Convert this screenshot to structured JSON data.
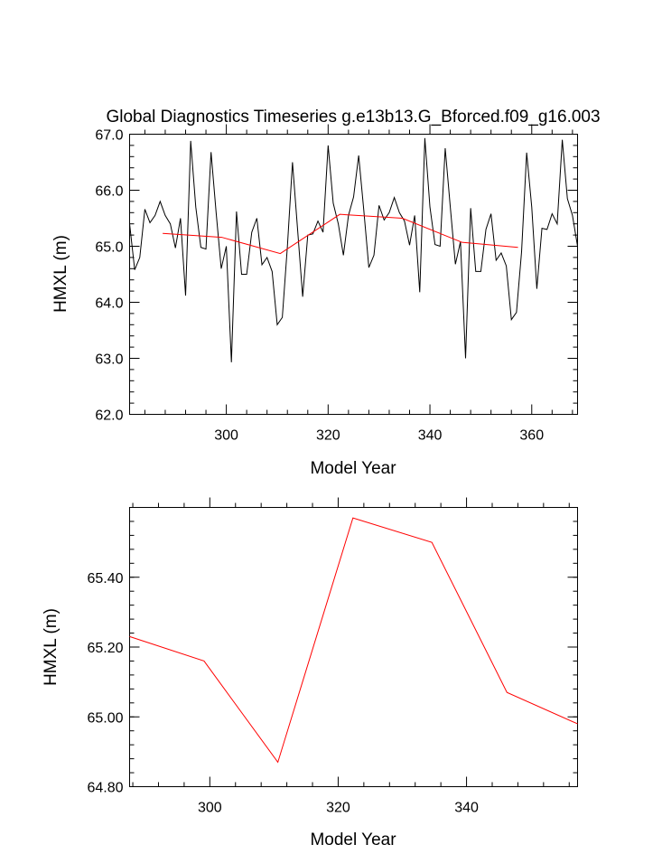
{
  "title": "Global Diagnostics Timeseries g.e13b13.G_Bforced.f09_g16.003",
  "chart_data": [
    {
      "type": "line",
      "xlabel": "Model Year",
      "ylabel": "HMXL (m)",
      "xlim": [
        281,
        369
      ],
      "ylim": [
        62.0,
        67.0
      ],
      "xticks": [
        300,
        320,
        340,
        360
      ],
      "yticks": [
        62.0,
        63.0,
        64.0,
        65.0,
        66.0,
        67.0
      ],
      "ytick_labels": [
        "62.0",
        "63.0",
        "64.0",
        "65.0",
        "66.0",
        "67.0"
      ],
      "grid": false,
      "series": [
        {
          "color": "#000000",
          "x": [
            281,
            282,
            283,
            284,
            285,
            286,
            287,
            288,
            289,
            290,
            291,
            292,
            293,
            294,
            295,
            296,
            297,
            298,
            299,
            300,
            301,
            302,
            303,
            304,
            305,
            306,
            307,
            308,
            309,
            310,
            311,
            312,
            313,
            314,
            315,
            316,
            317,
            318,
            319,
            320,
            321,
            322,
            323,
            324,
            325,
            326,
            327,
            328,
            329,
            330,
            331,
            332,
            333,
            334,
            335,
            336,
            337,
            338,
            339,
            340,
            341,
            342,
            343,
            344,
            345,
            346,
            347,
            348,
            349,
            350,
            351,
            352,
            353,
            354,
            355,
            356,
            357,
            358,
            359,
            360,
            361,
            362,
            363,
            364,
            365,
            366,
            367,
            368,
            369
          ],
          "y": [
            65.4,
            64.58,
            64.8,
            65.66,
            65.42,
            65.55,
            65.8,
            65.55,
            65.4,
            64.97,
            65.5,
            64.12,
            66.88,
            65.7,
            64.98,
            64.95,
            66.68,
            65.6,
            64.6,
            65.0,
            62.93,
            65.62,
            64.5,
            64.5,
            65.25,
            65.5,
            64.67,
            64.8,
            64.55,
            63.6,
            63.73,
            65.0,
            66.5,
            65.3,
            64.1,
            65.2,
            65.22,
            65.45,
            65.25,
            66.8,
            65.77,
            65.4,
            64.84,
            65.55,
            65.88,
            66.62,
            65.65,
            64.62,
            64.84,
            65.73,
            65.47,
            65.6,
            65.87,
            65.6,
            65.45,
            65.02,
            65.55,
            64.18,
            66.93,
            65.7,
            65.03,
            65.0,
            66.75,
            65.7,
            64.68,
            65.08,
            63.0,
            65.68,
            64.55,
            64.55,
            65.3,
            65.58,
            64.75,
            64.88,
            64.65,
            63.69,
            63.82,
            64.9,
            66.67,
            65.7,
            64.24,
            65.32,
            65.3,
            65.58,
            65.4,
            66.9,
            65.85,
            65.55,
            65.0
          ]
        },
        {
          "color": "#ff0000",
          "x": [
            287.5,
            299.1,
            310.6,
            322.3,
            334.6,
            346.3,
            357.3
          ],
          "y": [
            65.23,
            65.16,
            64.87,
            65.57,
            65.5,
            65.07,
            64.98
          ]
        }
      ]
    },
    {
      "type": "line",
      "xlabel": "Model Year",
      "ylabel": "HMXL (m)",
      "xlim": [
        287.5,
        357.3
      ],
      "ylim": [
        64.8,
        65.6
      ],
      "xticks": [
        300,
        320,
        340
      ],
      "yticks": [
        64.8,
        65.0,
        65.2,
        65.4
      ],
      "ytick_labels": [
        "64.80",
        "65.00",
        "65.20",
        "65.40"
      ],
      "grid": false,
      "series": [
        {
          "color": "#ff0000",
          "x": [
            287.5,
            299.1,
            310.6,
            322.3,
            334.6,
            346.3,
            357.3
          ],
          "y": [
            65.23,
            65.16,
            64.87,
            65.57,
            65.5,
            65.07,
            64.98
          ]
        }
      ]
    }
  ]
}
